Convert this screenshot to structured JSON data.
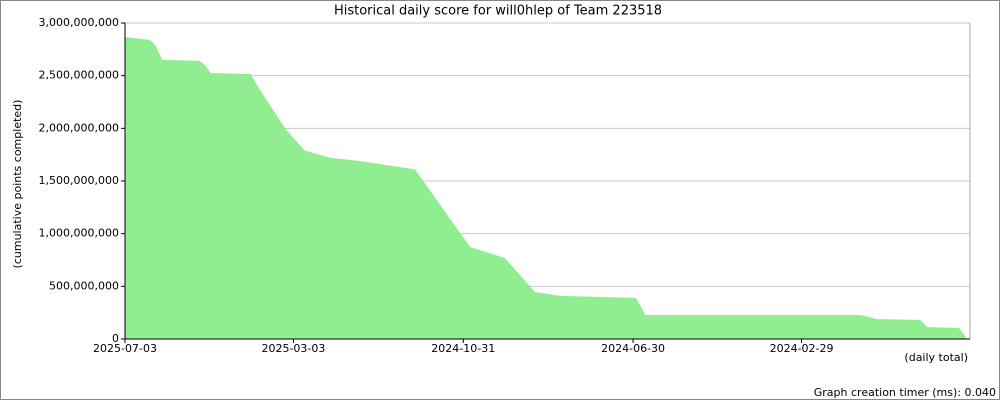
{
  "chart_data": {
    "type": "area",
    "title": "Historical daily score for will0hlep of Team 223518",
    "y_label": "(cumulative points completed)",
    "x_label": "(daily total)",
    "footer": "Graph creation timer (ms): 0.040",
    "color": "#90ee90",
    "x_reversed": true,
    "grid": true,
    "xlim": [
      "2025-07-03",
      "2023-10-30"
    ],
    "xticks": [
      "2025-07-03",
      "2025-03-03",
      "2024-10-31",
      "2024-06-30",
      "2024-02-29"
    ],
    "ylim": [
      0,
      3000000000
    ],
    "yticks": [
      {
        "value": 0,
        "label": "0"
      },
      {
        "value": 500000000,
        "label": "500,000,000"
      },
      {
        "value": 1000000000,
        "label": "1,000,000,000"
      },
      {
        "value": 1500000000,
        "label": "1,500,000,000"
      },
      {
        "value": 2000000000,
        "label": "2,000,000,000"
      },
      {
        "value": 2500000000,
        "label": "2,500,000,000"
      },
      {
        "value": 3000000000,
        "label": "3,000,000,000"
      }
    ],
    "x": [
      "2025-07-03",
      "2025-06-15",
      "2025-06-11",
      "2025-06-06",
      "2025-05-10",
      "2025-05-06",
      "2025-05-02",
      "2025-04-03",
      "2025-03-27",
      "2025-03-09",
      "2025-02-23",
      "2025-02-04",
      "2025-01-14",
      "2024-12-05",
      "2024-10-26",
      "2024-10-01",
      "2024-09-09",
      "2024-08-22",
      "2024-06-28",
      "2024-06-21",
      "2024-01-17",
      "2024-01-06",
      "2023-12-05",
      "2023-11-30",
      "2023-11-07",
      "2023-11-02"
    ],
    "values": [
      2867000000,
      2840000000,
      2790000000,
      2650000000,
      2640000000,
      2600000000,
      2525000000,
      2515000000,
      2360000000,
      2000000000,
      1790000000,
      1720000000,
      1690000000,
      1610000000,
      873000000,
      770000000,
      446000000,
      410000000,
      390000000,
      228000000,
      228000000,
      190000000,
      180000000,
      114000000,
      104000000,
      20000000
    ]
  }
}
